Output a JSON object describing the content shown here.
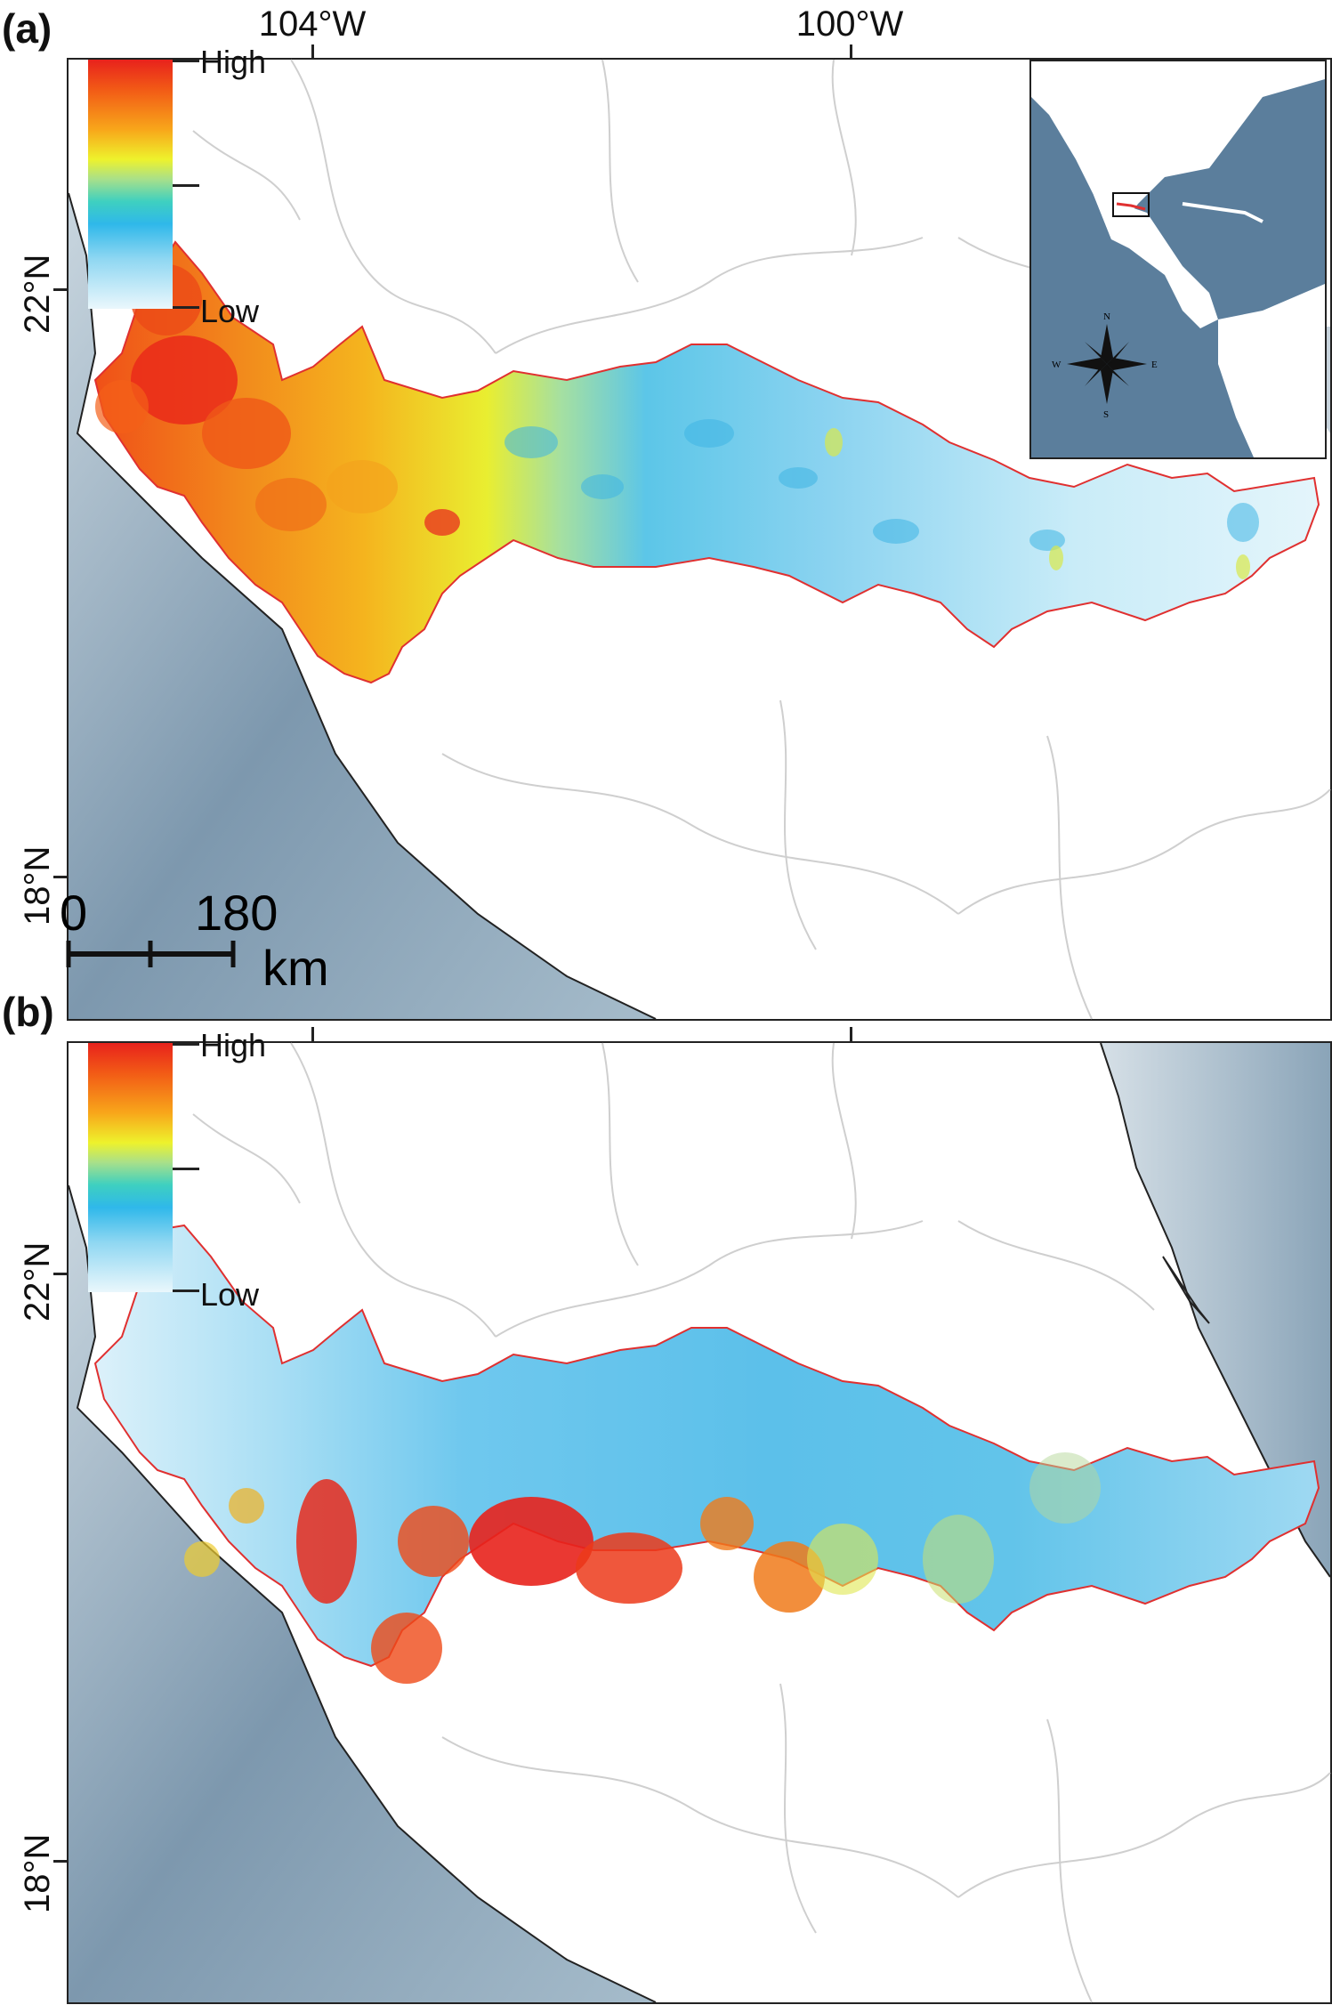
{
  "figure": {
    "panel_a_label": "(a)",
    "panel_b_label": "(b)",
    "longitude_labels": [
      "104°W",
      "100°W"
    ],
    "latitude_labels": [
      "22°N",
      "18°N"
    ],
    "legend": {
      "high_label": "High",
      "low_label": "Low"
    },
    "scale_bar": {
      "start": "0",
      "end": "180",
      "unit": "km"
    },
    "compass": {
      "n": "N",
      "s": "S",
      "e": "E",
      "w": "W"
    }
  },
  "colors": {
    "high": "#e8221c",
    "mid_high": "#f8a61a",
    "mid": "#eef22c",
    "mid_low": "#2fb8ea",
    "low": "#eaf7fc",
    "region_outline": "#e03030",
    "ocean": "#8fa9bf",
    "boundaries": "#c8c8c8"
  }
}
